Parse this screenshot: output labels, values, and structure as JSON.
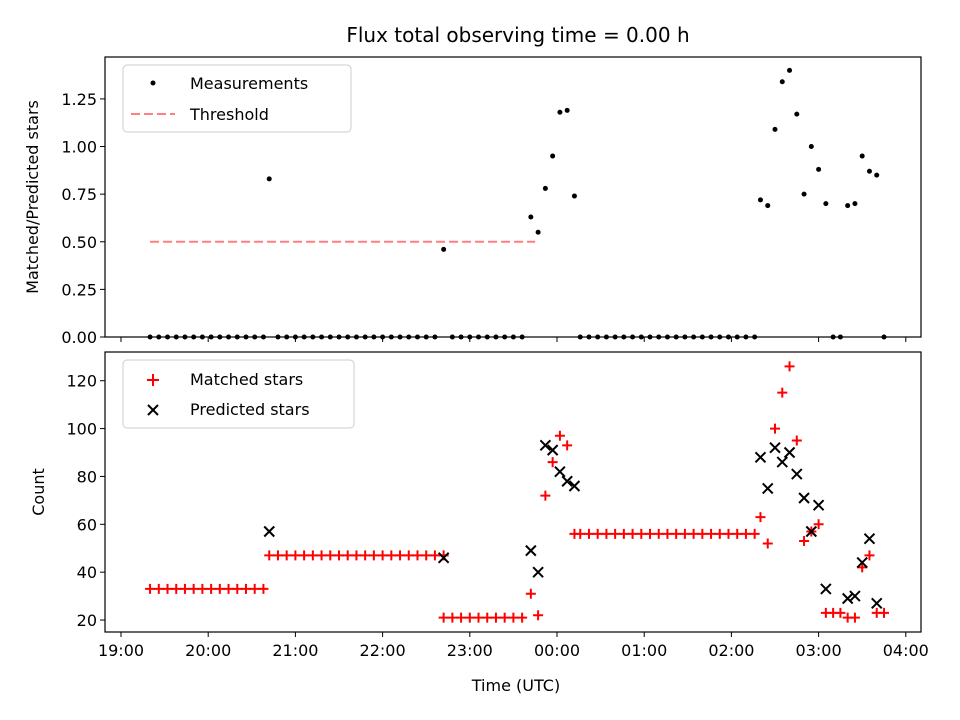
{
  "chart_data": [
    {
      "type": "scatter",
      "title": "Flux total observing time = 0.00 h",
      "ylabel": "Matched/Predicted stars",
      "xlabel": "",
      "ylim": [
        0,
        1.47
      ],
      "xlim": [
        "19:00",
        "04:00"
      ],
      "yticks": [
        "0.00",
        "0.25",
        "0.50",
        "0.75",
        "1.00",
        "1.25"
      ],
      "legend": {
        "position": "top-left",
        "labels": [
          "Measurements",
          "Threshold"
        ]
      },
      "threshold": {
        "value": 0.5,
        "x_range": [
          "19:20",
          "23:45"
        ]
      },
      "series": [
        {
          "name": "Measurements",
          "color": "#000000",
          "points": [
            [
              "19:20",
              0
            ],
            [
              "19:26",
              0
            ],
            [
              "19:32",
              0
            ],
            [
              "19:38",
              0
            ],
            [
              "19:44",
              0
            ],
            [
              "19:50",
              0
            ],
            [
              "19:56",
              0
            ],
            [
              "20:02",
              0
            ],
            [
              "20:08",
              0
            ],
            [
              "20:14",
              0
            ],
            [
              "20:20",
              0
            ],
            [
              "20:26",
              0
            ],
            [
              "20:32",
              0
            ],
            [
              "20:38",
              0
            ],
            [
              "20:42",
              0.83
            ],
            [
              "20:48",
              0
            ],
            [
              "20:54",
              0
            ],
            [
              "21:00",
              0
            ],
            [
              "21:06",
              0
            ],
            [
              "21:12",
              0
            ],
            [
              "21:18",
              0
            ],
            [
              "21:24",
              0
            ],
            [
              "21:30",
              0
            ],
            [
              "21:36",
              0
            ],
            [
              "21:42",
              0
            ],
            [
              "21:48",
              0
            ],
            [
              "21:54",
              0
            ],
            [
              "22:00",
              0
            ],
            [
              "22:06",
              0
            ],
            [
              "22:12",
              0
            ],
            [
              "22:18",
              0
            ],
            [
              "22:24",
              0
            ],
            [
              "22:30",
              0
            ],
            [
              "22:36",
              0
            ],
            [
              "22:42",
              0.46
            ],
            [
              "22:48",
              0
            ],
            [
              "22:54",
              0
            ],
            [
              "23:00",
              0
            ],
            [
              "23:06",
              0
            ],
            [
              "23:12",
              0
            ],
            [
              "23:18",
              0
            ],
            [
              "23:24",
              0
            ],
            [
              "23:30",
              0
            ],
            [
              "23:36",
              0
            ],
            [
              "23:42",
              0.63
            ],
            [
              "23:47",
              0.55
            ],
            [
              "23:52",
              0.78
            ],
            [
              "23:57",
              0.95
            ],
            [
              "00:02",
              1.18
            ],
            [
              "00:07",
              1.19
            ],
            [
              "00:12",
              0.74
            ],
            [
              "00:16",
              0
            ],
            [
              "00:22",
              0
            ],
            [
              "00:28",
              0
            ],
            [
              "00:34",
              0
            ],
            [
              "00:40",
              0
            ],
            [
              "00:46",
              0
            ],
            [
              "00:52",
              0
            ],
            [
              "00:58",
              0
            ],
            [
              "01:04",
              0
            ],
            [
              "01:10",
              0
            ],
            [
              "01:16",
              0
            ],
            [
              "01:22",
              0
            ],
            [
              "01:28",
              0
            ],
            [
              "01:34",
              0
            ],
            [
              "01:40",
              0
            ],
            [
              "01:46",
              0
            ],
            [
              "01:52",
              0
            ],
            [
              "01:58",
              0
            ],
            [
              "02:04",
              0
            ],
            [
              "02:10",
              0
            ],
            [
              "02:16",
              0
            ],
            [
              "02:20",
              0.72
            ],
            [
              "02:25",
              0.69
            ],
            [
              "02:30",
              1.09
            ],
            [
              "02:35",
              1.34
            ],
            [
              "02:40",
              1.4
            ],
            [
              "02:45",
              1.17
            ],
            [
              "02:50",
              0.75
            ],
            [
              "02:55",
              1.0
            ],
            [
              "03:00",
              0.88
            ],
            [
              "03:05",
              0.7
            ],
            [
              "03:10",
              0
            ],
            [
              "03:15",
              0
            ],
            [
              "03:20",
              0.69
            ],
            [
              "03:25",
              0.7
            ],
            [
              "03:30",
              0.95
            ],
            [
              "03:35",
              0.87
            ],
            [
              "03:40",
              0.85
            ],
            [
              "03:45",
              0
            ]
          ]
        }
      ]
    },
    {
      "type": "scatter",
      "title": "",
      "ylabel": "Count",
      "xlabel": "Time (UTC)",
      "ylim": [
        15,
        132
      ],
      "xlim": [
        "19:00",
        "04:00"
      ],
      "yticks": [
        "20",
        "40",
        "60",
        "80",
        "100",
        "120"
      ],
      "xticks": [
        "19:00",
        "20:00",
        "21:00",
        "22:00",
        "23:00",
        "00:00",
        "01:00",
        "02:00",
        "03:00",
        "04:00"
      ],
      "legend": {
        "position": "top-left",
        "labels": [
          "Matched stars",
          "Predicted stars"
        ]
      },
      "series": [
        {
          "name": "Matched stars",
          "marker": "+",
          "color": "#ff0000",
          "points": [
            [
              "19:20",
              33
            ],
            [
              "19:26",
              33
            ],
            [
              "19:32",
              33
            ],
            [
              "19:38",
              33
            ],
            [
              "19:44",
              33
            ],
            [
              "19:50",
              33
            ],
            [
              "19:56",
              33
            ],
            [
              "20:02",
              33
            ],
            [
              "20:08",
              33
            ],
            [
              "20:14",
              33
            ],
            [
              "20:20",
              33
            ],
            [
              "20:26",
              33
            ],
            [
              "20:32",
              33
            ],
            [
              "20:38",
              33
            ],
            [
              "20:42",
              47
            ],
            [
              "20:48",
              47
            ],
            [
              "20:54",
              47
            ],
            [
              "21:00",
              47
            ],
            [
              "21:06",
              47
            ],
            [
              "21:12",
              47
            ],
            [
              "21:18",
              47
            ],
            [
              "21:24",
              47
            ],
            [
              "21:30",
              47
            ],
            [
              "21:36",
              47
            ],
            [
              "21:42",
              47
            ],
            [
              "21:48",
              47
            ],
            [
              "21:54",
              47
            ],
            [
              "22:00",
              47
            ],
            [
              "22:06",
              47
            ],
            [
              "22:12",
              47
            ],
            [
              "22:18",
              47
            ],
            [
              "22:24",
              47
            ],
            [
              "22:30",
              47
            ],
            [
              "22:36",
              47
            ],
            [
              "22:42",
              47
            ],
            [
              "22:42",
              21
            ],
            [
              "22:48",
              21
            ],
            [
              "22:54",
              21
            ],
            [
              "23:00",
              21
            ],
            [
              "23:06",
              21
            ],
            [
              "23:12",
              21
            ],
            [
              "23:18",
              21
            ],
            [
              "23:24",
              21
            ],
            [
              "23:30",
              21
            ],
            [
              "23:36",
              21
            ],
            [
              "23:42",
              31
            ],
            [
              "23:47",
              22
            ],
            [
              "23:52",
              72
            ],
            [
              "23:57",
              86
            ],
            [
              "00:02",
              97
            ],
            [
              "00:07",
              93
            ],
            [
              "00:12",
              56
            ],
            [
              "00:16",
              56
            ],
            [
              "00:22",
              56
            ],
            [
              "00:28",
              56
            ],
            [
              "00:34",
              56
            ],
            [
              "00:40",
              56
            ],
            [
              "00:46",
              56
            ],
            [
              "00:52",
              56
            ],
            [
              "00:58",
              56
            ],
            [
              "01:04",
              56
            ],
            [
              "01:10",
              56
            ],
            [
              "01:16",
              56
            ],
            [
              "01:22",
              56
            ],
            [
              "01:28",
              56
            ],
            [
              "01:34",
              56
            ],
            [
              "01:40",
              56
            ],
            [
              "01:46",
              56
            ],
            [
              "01:52",
              56
            ],
            [
              "01:58",
              56
            ],
            [
              "02:04",
              56
            ],
            [
              "02:10",
              56
            ],
            [
              "02:16",
              56
            ],
            [
              "02:20",
              63
            ],
            [
              "02:25",
              52
            ],
            [
              "02:30",
              100
            ],
            [
              "02:35",
              115
            ],
            [
              "02:40",
              126
            ],
            [
              "02:45",
              95
            ],
            [
              "02:50",
              53
            ],
            [
              "02:55",
              57
            ],
            [
              "03:00",
              60
            ],
            [
              "03:05",
              23
            ],
            [
              "03:10",
              23
            ],
            [
              "03:15",
              23
            ],
            [
              "03:20",
              21
            ],
            [
              "03:25",
              21
            ],
            [
              "03:30",
              42
            ],
            [
              "03:35",
              47
            ],
            [
              "03:40",
              23
            ],
            [
              "03:45",
              23
            ]
          ]
        },
        {
          "name": "Predicted stars",
          "marker": "x",
          "color": "#000000",
          "points": [
            [
              "20:42",
              57
            ],
            [
              "22:42",
              46
            ],
            [
              "23:42",
              49
            ],
            [
              "23:47",
              40
            ],
            [
              "23:52",
              93
            ],
            [
              "23:57",
              91
            ],
            [
              "00:02",
              82
            ],
            [
              "00:07",
              78
            ],
            [
              "00:12",
              76
            ],
            [
              "02:20",
              88
            ],
            [
              "02:25",
              75
            ],
            [
              "02:30",
              92
            ],
            [
              "02:35",
              86
            ],
            [
              "02:40",
              90
            ],
            [
              "02:45",
              81
            ],
            [
              "02:50",
              71
            ],
            [
              "02:55",
              57
            ],
            [
              "03:00",
              68
            ],
            [
              "03:05",
              33
            ],
            [
              "03:20",
              29
            ],
            [
              "03:25",
              30
            ],
            [
              "03:30",
              44
            ],
            [
              "03:35",
              54
            ],
            [
              "03:40",
              27
            ]
          ]
        }
      ]
    }
  ]
}
